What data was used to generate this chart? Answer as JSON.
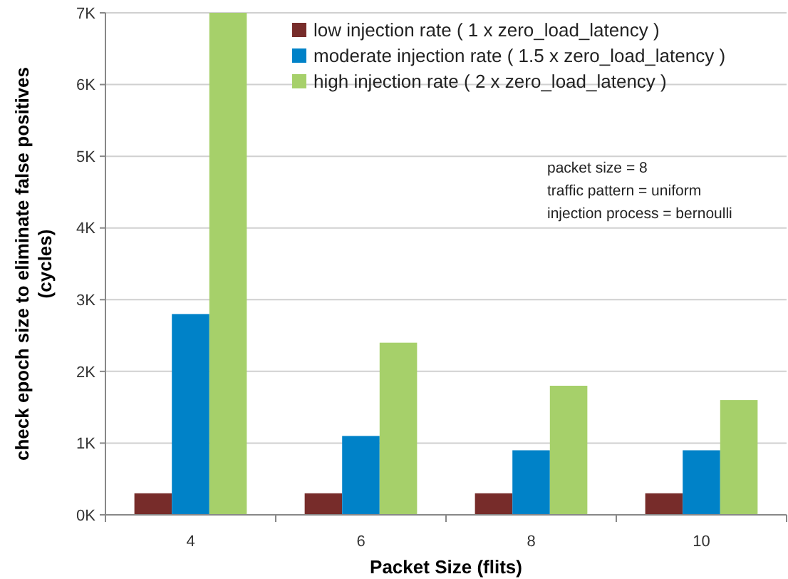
{
  "chart_data": {
    "type": "bar",
    "xlabel": "Packet Size (flits)",
    "ylabel": "check epoch size to eliminate false positives\n(cycles)",
    "categories": [
      "4",
      "6",
      "8",
      "10"
    ],
    "series": [
      {
        "name": "low injection rate ( 1 x zero_load_latency )",
        "color": "#772c2a",
        "values": [
          300,
          300,
          300,
          300
        ]
      },
      {
        "name": "moderate injection rate ( 1.5 x zero_load_latency )",
        "color": "#0082c8",
        "values": [
          2800,
          1100,
          900,
          900
        ]
      },
      {
        "name": "high injection rate ( 2 x zero_load_latency )",
        "color": "#a6d06a",
        "values": [
          7000,
          2400,
          1800,
          1600
        ]
      }
    ],
    "ylim": [
      0,
      7000
    ],
    "yticks": [
      {
        "value": 0,
        "label": "0K"
      },
      {
        "value": 1000,
        "label": "1K"
      },
      {
        "value": 2000,
        "label": "2K"
      },
      {
        "value": 3000,
        "label": "3K"
      },
      {
        "value": 4000,
        "label": "4K"
      },
      {
        "value": 5000,
        "label": "5K"
      },
      {
        "value": 6000,
        "label": "6K"
      },
      {
        "value": 7000,
        "label": "7K"
      }
    ],
    "grid": "y",
    "legend": "top right",
    "annotations": [
      "packet size = 8",
      "traffic pattern = uniform",
      "injection process = bernoulli"
    ]
  }
}
